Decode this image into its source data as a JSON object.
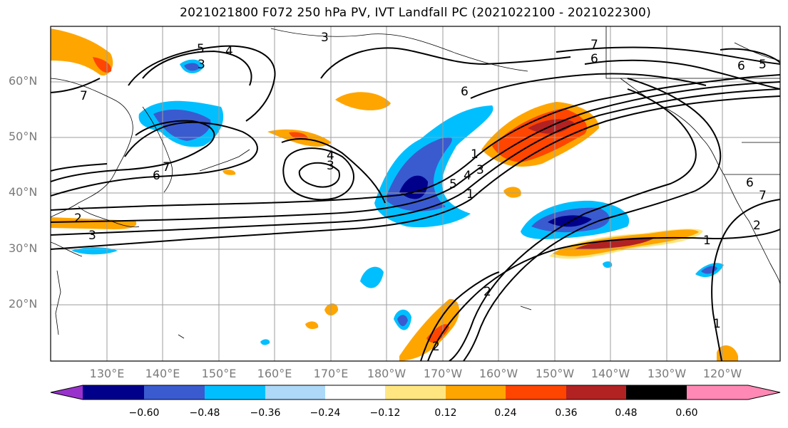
{
  "title": "2021021800 F072 250 hPa PV, IVT Landfall PC (2021022100 - 2021022300)",
  "lat_labels": [
    "60°N",
    "50°N",
    "40°N",
    "30°N",
    "20°N"
  ],
  "lon_labels": [
    "130°E",
    "140°E",
    "150°E",
    "160°E",
    "170°E",
    "180°W",
    "170°W",
    "160°W",
    "150°W",
    "140°W",
    "130°W",
    "120°W"
  ],
  "colorbar": {
    "colors": [
      "#9932cc",
      "#00008b",
      "#3a5bd0",
      "#00bfff",
      "#add8f8",
      "#ffffff",
      "#ffe680",
      "#ffa500",
      "#ff4500",
      "#b22222",
      "#ff88b4"
    ],
    "ticks": [
      "−0.60",
      "−0.48",
      "−0.36",
      "−0.24",
      "−0.12",
      "0.12",
      "0.24",
      "0.36",
      "0.48",
      "0.60"
    ]
  },
  "contour_labels": [
    "3",
    "5",
    "4",
    "3",
    "7",
    "6",
    "7",
    "6",
    "6",
    "5",
    "1",
    "5",
    "4",
    "3",
    "1",
    "4",
    "3",
    "7",
    "6",
    "2",
    "3",
    "6",
    "7",
    "1",
    "2",
    "2",
    "1",
    "2"
  ]
}
